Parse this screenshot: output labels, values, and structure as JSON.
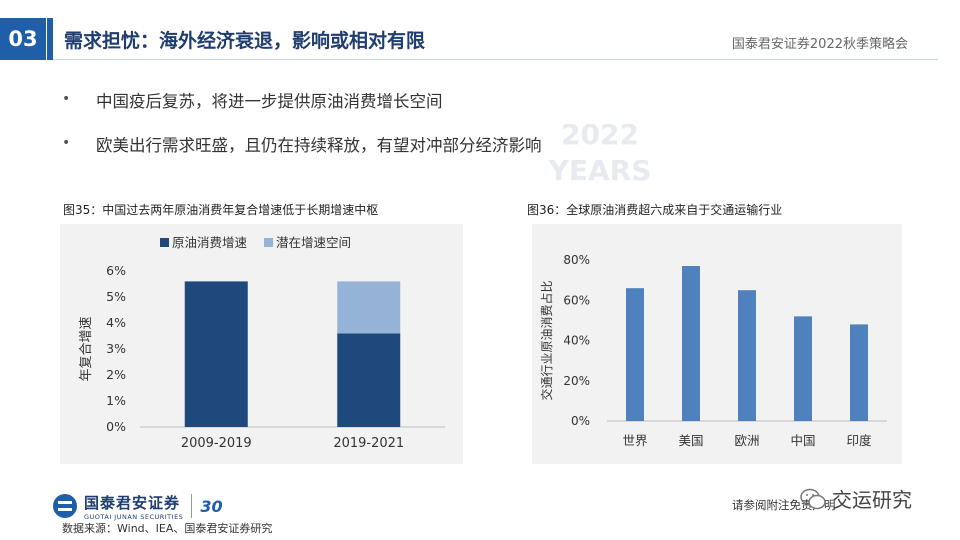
{
  "header": {
    "section_number": "03",
    "title": "需求担忧：海外经济衰退，影响或相对有限",
    "event": "国泰君安证券2022秋季策略会"
  },
  "bullets": [
    "中国疫后复苏，将进一步提供原油消费增长空间",
    "欧美出行需求旺盛，且仍在持续释放，有望对冲部分经济影响"
  ],
  "bullet_marker": "•",
  "watermark": {
    "line1": "2022",
    "line2": "YEARS"
  },
  "chart_data": [
    {
      "type": "bar",
      "stacked": true,
      "caption": "图35：中国过去两年原油消费年复合增速低于长期增速中枢",
      "categories": [
        "2009-2019",
        "2019-2021"
      ],
      "series": [
        {
          "name": "原油消费增速",
          "values": [
            5.6,
            3.6
          ],
          "color": "#1f497d"
        },
        {
          "name": "潜在增速空间",
          "values": [
            0,
            2.0
          ],
          "color": "#95b3d7"
        }
      ],
      "ylabel": "年复合增速",
      "ylim": [
        0,
        6
      ],
      "yticks": [
        "0%",
        "1%",
        "2%",
        "3%",
        "4%",
        "5%",
        "6%"
      ],
      "legend": "top-center"
    },
    {
      "type": "bar",
      "caption": "图36：全球原油消费超六成来自于交通运输行业",
      "categories": [
        "世界",
        "美国",
        "欧洲",
        "中国",
        "印度"
      ],
      "series": [
        {
          "name": "交通行业原油消费占比",
          "values": [
            66,
            77,
            65,
            52,
            48
          ],
          "color": "#4f81bd"
        }
      ],
      "ylabel": "交通行业原油消费占比",
      "ylim": [
        0,
        80
      ],
      "yticks": [
        "0%",
        "20%",
        "40%",
        "60%",
        "80%"
      ]
    }
  ],
  "footer": {
    "logo_cn": "国泰君安证券",
    "logo_en": "GUOTAI JUNAN SECURITIES",
    "logo_anniv": "30",
    "source": "数据来源：Wind、IEA、国泰君安证券研究",
    "disclaimer": "请参阅附注免责声明",
    "wechat_name": "交运研究"
  }
}
